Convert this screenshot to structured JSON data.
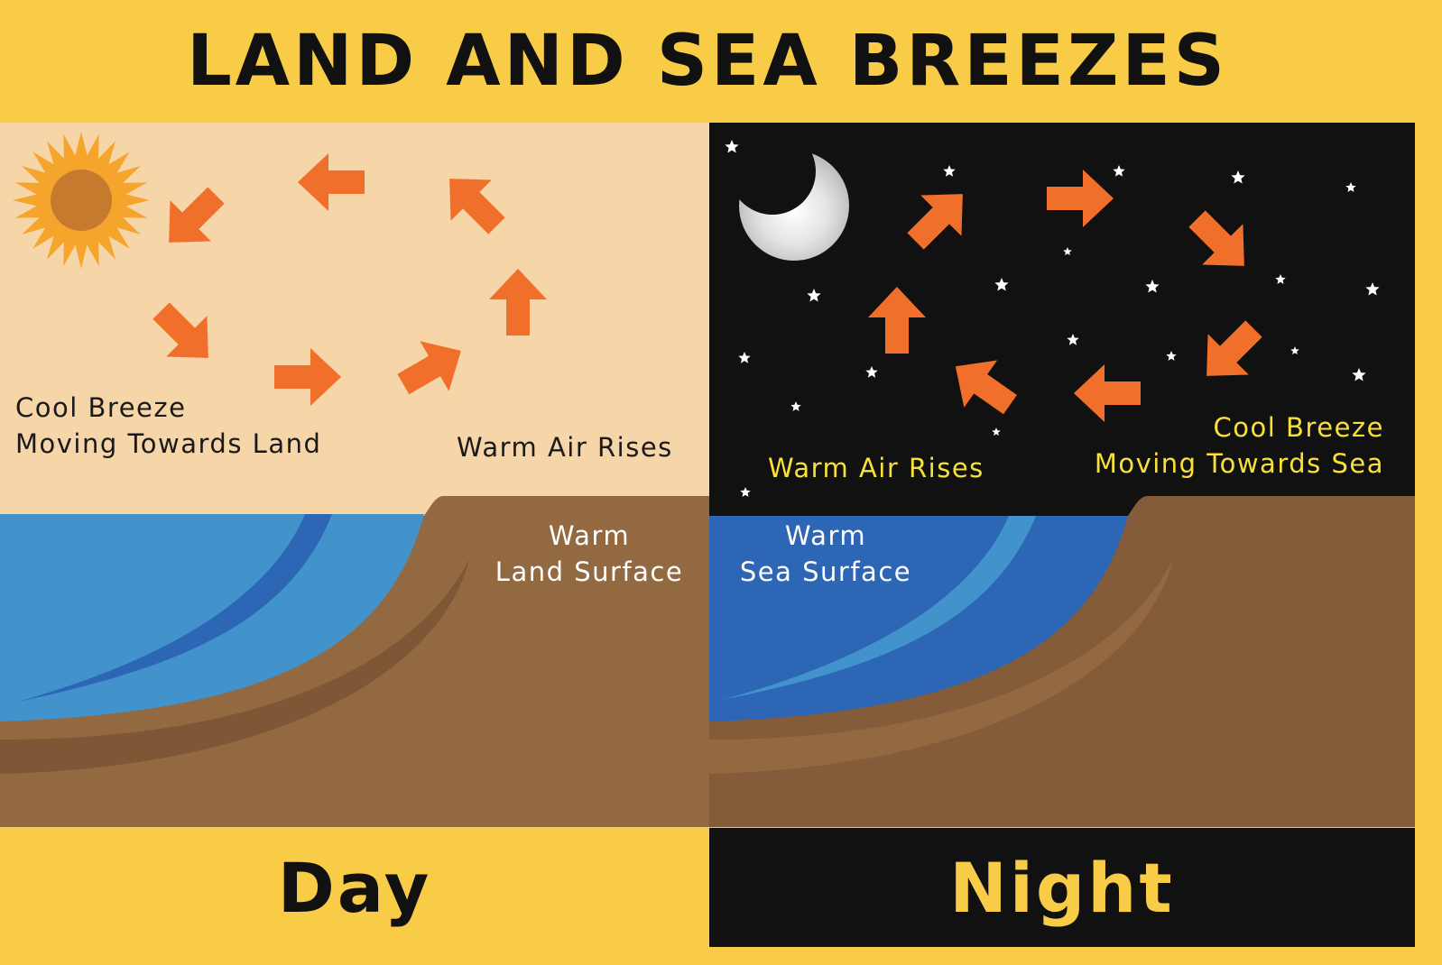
{
  "title": "LAND AND SEA BREEZES",
  "day": {
    "footer": "Day",
    "cool_breeze_line1": "Cool Breeze",
    "cool_breeze_line2": "Moving Towards Land",
    "warm_air": "Warm Air Rises",
    "surface_line1": "Warm",
    "surface_line2": "Land Surface"
  },
  "night": {
    "footer": "Night",
    "cool_breeze_line1": "Cool Breeze",
    "cool_breeze_line2": "Moving Towards Sea",
    "warm_air": "Warm Air Rises",
    "surface_line1": "Warm",
    "surface_line2": "Sea Surface"
  },
  "colors": {
    "banner": "#f8cc47",
    "day_sky": "#f6d6a9",
    "night_sky": "#121111",
    "arrow": "#f06f2a",
    "day_sea": "#4293cc",
    "night_sea": "#2c66b5",
    "land": "#936941"
  },
  "icons": [
    "sun-icon",
    "moon-icon",
    "star-icon",
    "arrow-icon"
  ]
}
